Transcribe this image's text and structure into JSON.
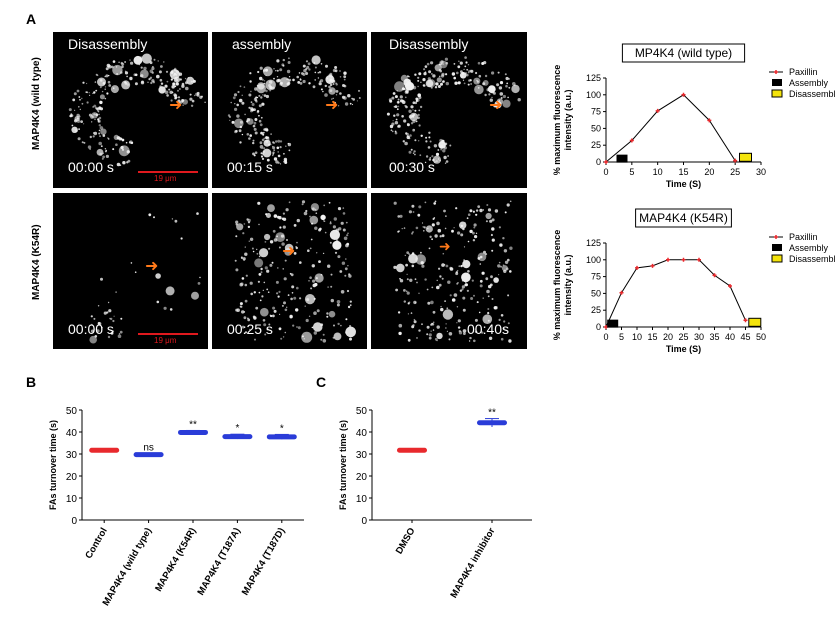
{
  "panels": {
    "A": "A",
    "B": "B",
    "C": "C"
  },
  "panel_a": {
    "row_labels": [
      "MAP4K4 (wild type)",
      "MAP4K4 (K54R)"
    ],
    "images": [
      {
        "title": "Disassembly",
        "time": "00:00 s",
        "scale": "19 μm"
      },
      {
        "title": "assembly",
        "time": "00:15 s"
      },
      {
        "title": "Disassembly",
        "time": "00:30 s"
      },
      {
        "title": "",
        "time": "00:00 s",
        "scale": "19 μm"
      },
      {
        "title": "",
        "time": "00:25 s"
      },
      {
        "title": "",
        "time": "00:40s"
      }
    ]
  },
  "chart_data": [
    {
      "type": "line",
      "title": "MP4K4 (wild type)",
      "xlabel": "Time (S)",
      "ylabel": "% maximum fluorescence intensity (a.u.)",
      "xlim": [
        0,
        30
      ],
      "ylim": [
        0,
        125
      ],
      "xticks": [
        0,
        5,
        10,
        15,
        20,
        25,
        30
      ],
      "yticks": [
        0,
        25,
        50,
        75,
        100,
        125
      ],
      "series": [
        {
          "name": "Paxillin",
          "x": [
            0,
            5,
            10,
            15,
            20,
            25
          ],
          "y": [
            0,
            32,
            76,
            100,
            62,
            2
          ]
        }
      ],
      "markers": [
        {
          "name": "Assembly",
          "x": 3,
          "y": 5
        },
        {
          "name": "Disassembly",
          "x": 27,
          "y": 7
        }
      ],
      "legend": [
        "Paxillin",
        "Assembly",
        "Disassembly"
      ],
      "legend_position": "right"
    },
    {
      "type": "line",
      "title": "MAP4K4 (K54R)",
      "xlabel": "Time (S)",
      "ylabel": "% maximum fluorescence intensity (a.u.)",
      "xlim": [
        0,
        50
      ],
      "ylim": [
        0,
        125
      ],
      "xticks": [
        0,
        5,
        10,
        15,
        20,
        25,
        30,
        35,
        40,
        45,
        50
      ],
      "yticks": [
        0,
        25,
        50,
        75,
        100,
        125
      ],
      "series": [
        {
          "name": "Paxillin",
          "x": [
            0,
            5,
            10,
            15,
            20,
            25,
            30,
            35,
            40,
            45
          ],
          "y": [
            0,
            51,
            88,
            91,
            100,
            100,
            100,
            77,
            61,
            10
          ]
        }
      ],
      "markers": [
        {
          "name": "Assembly",
          "x": 2,
          "y": 5
        },
        {
          "name": "Disassembly",
          "x": 48,
          "y": 7
        }
      ],
      "legend": [
        "Paxillin",
        "Assembly",
        "Disassembly"
      ],
      "legend_position": "right"
    },
    {
      "type": "scatter",
      "ylabel": "FAs turnover time (s)",
      "ylim": [
        0,
        50
      ],
      "yticks": [
        0,
        10,
        20,
        30,
        40,
        50
      ],
      "categories": [
        "Control",
        "MAP4K4 (wild type)",
        "MAP4K4 (K54R)",
        "MAP4K4 (T187A)",
        "MAP4K4 (T187D)"
      ],
      "values": [
        31.7,
        29.7,
        39.8,
        37.9,
        37.8
      ],
      "errors": [
        0.6,
        0.6,
        0.9,
        1.1,
        1.1
      ],
      "significance": [
        "",
        "ns",
        "**",
        "*",
        "*"
      ],
      "colors": [
        "#e8292d",
        "#2a3cd8",
        "#2a3cd8",
        "#2a3cd8",
        "#2a3cd8"
      ]
    },
    {
      "type": "scatter",
      "ylabel": "FAs turnover time (s)",
      "ylim": [
        0,
        50
      ],
      "yticks": [
        0,
        10,
        20,
        30,
        40,
        50
      ],
      "categories": [
        "DMSO",
        "MAP4K4 inhibitor"
      ],
      "values": [
        31.7,
        44.2
      ],
      "errors": [
        0.7,
        1.9
      ],
      "significance": [
        "",
        "**"
      ],
      "colors": [
        "#e8292d",
        "#2a3cd8"
      ]
    }
  ]
}
